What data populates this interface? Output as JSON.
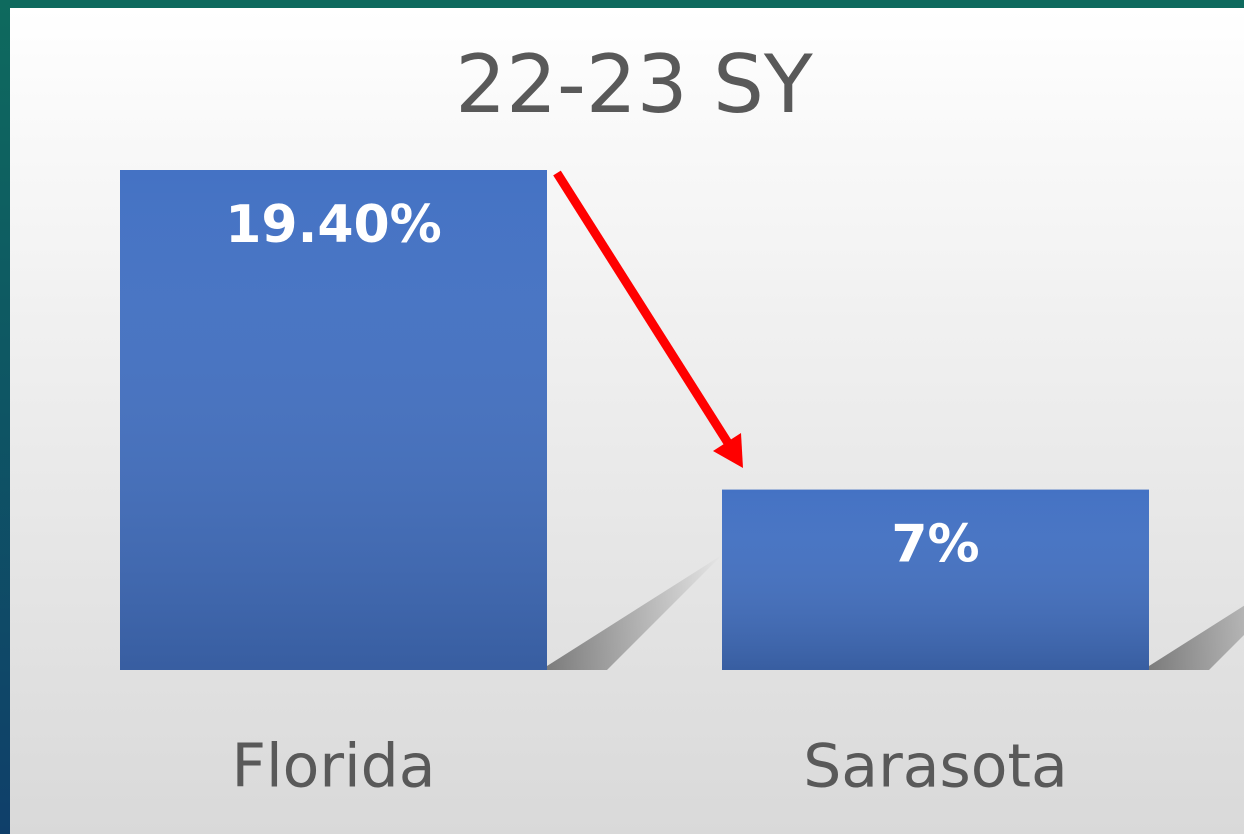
{
  "chart_data": {
    "type": "bar",
    "title": "22-23 SY",
    "categories": [
      "Florida",
      "Sarasota"
    ],
    "values": [
      19.4,
      7
    ],
    "value_labels": [
      "19.40%",
      "7%"
    ],
    "color": "#4472c4"
  }
}
